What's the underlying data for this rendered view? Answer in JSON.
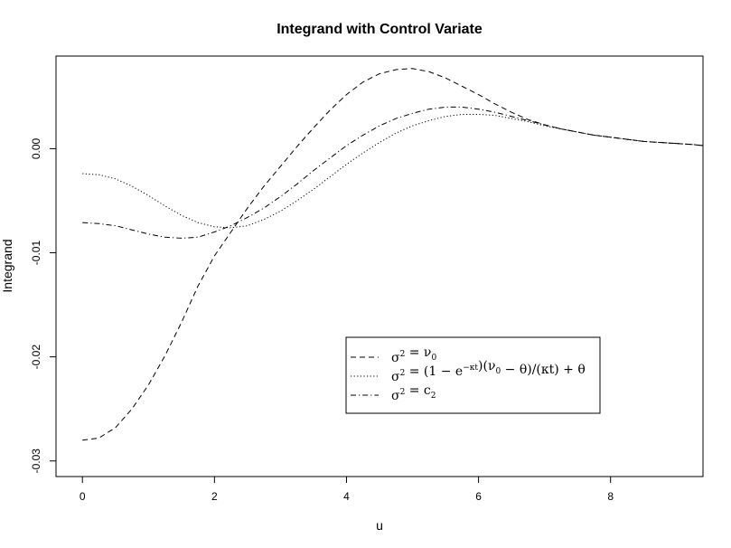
{
  "chart_data": {
    "type": "line",
    "title": "Integrand with Control Variate",
    "xlabel": "u",
    "ylabel": "Integrand",
    "xlim": [
      -0.4,
      9.4
    ],
    "ylim": [
      -0.0315,
      0.0089
    ],
    "xticks": [
      0,
      2,
      4,
      6,
      8
    ],
    "xtick_labels": [
      "0",
      "2",
      "4",
      "6",
      "8"
    ],
    "yticks": [
      -0.03,
      -0.02,
      -0.01,
      0.0
    ],
    "ytick_labels": [
      "-0.03",
      "-0.02",
      "-0.01",
      "0.00"
    ],
    "grid": false,
    "legend_position": "bottom-right",
    "series": [
      {
        "name": "σ² = ν₀",
        "legend": {
          "base": "σ",
          "sup": "2",
          "rest": " = ν",
          "sub": "0"
        },
        "linestyle": "dashed",
        "color": "#000000",
        "x": [
          0,
          0.25,
          0.5,
          0.75,
          1.0,
          1.25,
          1.5,
          1.75,
          2.0,
          2.25,
          2.5,
          2.75,
          3.0,
          3.25,
          3.5,
          3.75,
          4.0,
          4.25,
          4.5,
          4.75,
          5.0,
          5.25,
          5.5,
          5.75,
          6.0,
          6.25,
          6.5,
          6.75,
          7.0,
          7.25,
          7.5,
          7.75,
          8.0,
          8.25,
          8.5,
          8.75,
          9.0,
          9.25,
          9.4
        ],
        "y": [
          -0.028,
          -0.0278,
          -0.0268,
          -0.025,
          -0.0227,
          -0.0199,
          -0.0167,
          -0.0132,
          -0.0103,
          -0.008,
          -0.0057,
          -0.0036,
          -0.0017,
          0.0002,
          0.002,
          0.0037,
          0.0052,
          0.0064,
          0.0072,
          0.0076,
          0.0077,
          0.0074,
          0.0068,
          0.006,
          0.0052,
          0.0043,
          0.0035,
          0.0028,
          0.0023,
          0.0019,
          0.0016,
          0.0013,
          0.0011,
          0.0009,
          0.0007,
          0.0006,
          0.0005,
          0.0004,
          0.0003
        ]
      },
      {
        "name": "σ² = (1 − e^(−κt))(ν₀ − θ)/(κt) + θ",
        "legend": {
          "base": "σ",
          "sup": "2",
          "rest": " = (1 − e",
          "sup2": "−κt",
          "rest2": ")(ν",
          "sub": "0",
          "rest3": " − θ)/(κt) + θ"
        },
        "linestyle": "dotted",
        "color": "#000000",
        "x": [
          0,
          0.25,
          0.5,
          0.75,
          1.0,
          1.25,
          1.5,
          1.75,
          2.0,
          2.25,
          2.5,
          2.75,
          3.0,
          3.25,
          3.5,
          3.75,
          4.0,
          4.25,
          4.5,
          4.75,
          5.0,
          5.25,
          5.5,
          5.75,
          6.0,
          6.25,
          6.5,
          6.75,
          7.0,
          7.25,
          7.5,
          7.75,
          8.0,
          8.25,
          8.5,
          8.75,
          9.0,
          9.25,
          9.4
        ],
        "y": [
          -0.0024,
          -0.0025,
          -0.0029,
          -0.0036,
          -0.0045,
          -0.0055,
          -0.0064,
          -0.0071,
          -0.0075,
          -0.0076,
          -0.0074,
          -0.0068,
          -0.006,
          -0.005,
          -0.0039,
          -0.0027,
          -0.0015,
          -0.0004,
          0.0006,
          0.0015,
          0.0022,
          0.0027,
          0.0031,
          0.0033,
          0.0033,
          0.0032,
          0.0029,
          0.0026,
          0.0022,
          0.0019,
          0.0016,
          0.0013,
          0.0011,
          0.0009,
          0.0007,
          0.0006,
          0.0005,
          0.0004,
          0.0003
        ]
      },
      {
        "name": "σ² = c₂",
        "legend": {
          "base": "σ",
          "sup": "2",
          "rest": " = c",
          "sub": "2"
        },
        "linestyle": "dashdot",
        "color": "#000000",
        "x": [
          0,
          0.25,
          0.5,
          0.75,
          1.0,
          1.25,
          1.5,
          1.75,
          2.0,
          2.25,
          2.5,
          2.75,
          3.0,
          3.25,
          3.5,
          3.75,
          4.0,
          4.25,
          4.5,
          4.75,
          5.0,
          5.25,
          5.5,
          5.75,
          6.0,
          6.25,
          6.5,
          6.75,
          7.0,
          7.25,
          7.5,
          7.75,
          8.0,
          8.25,
          8.5,
          8.75,
          9.0,
          9.25,
          9.4
        ],
        "y": [
          -0.0071,
          -0.0072,
          -0.0074,
          -0.0078,
          -0.0082,
          -0.0085,
          -0.0086,
          -0.0085,
          -0.008,
          -0.0074,
          -0.0066,
          -0.0057,
          -0.0046,
          -0.0034,
          -0.0021,
          -0.0009,
          0.0003,
          0.0013,
          0.0022,
          0.0029,
          0.0034,
          0.0038,
          0.004,
          0.004,
          0.0038,
          0.0035,
          0.0031,
          0.0027,
          0.0023,
          0.0019,
          0.0016,
          0.0013,
          0.0011,
          0.0009,
          0.0007,
          0.0006,
          0.0005,
          0.0004,
          0.0003
        ]
      }
    ]
  }
}
